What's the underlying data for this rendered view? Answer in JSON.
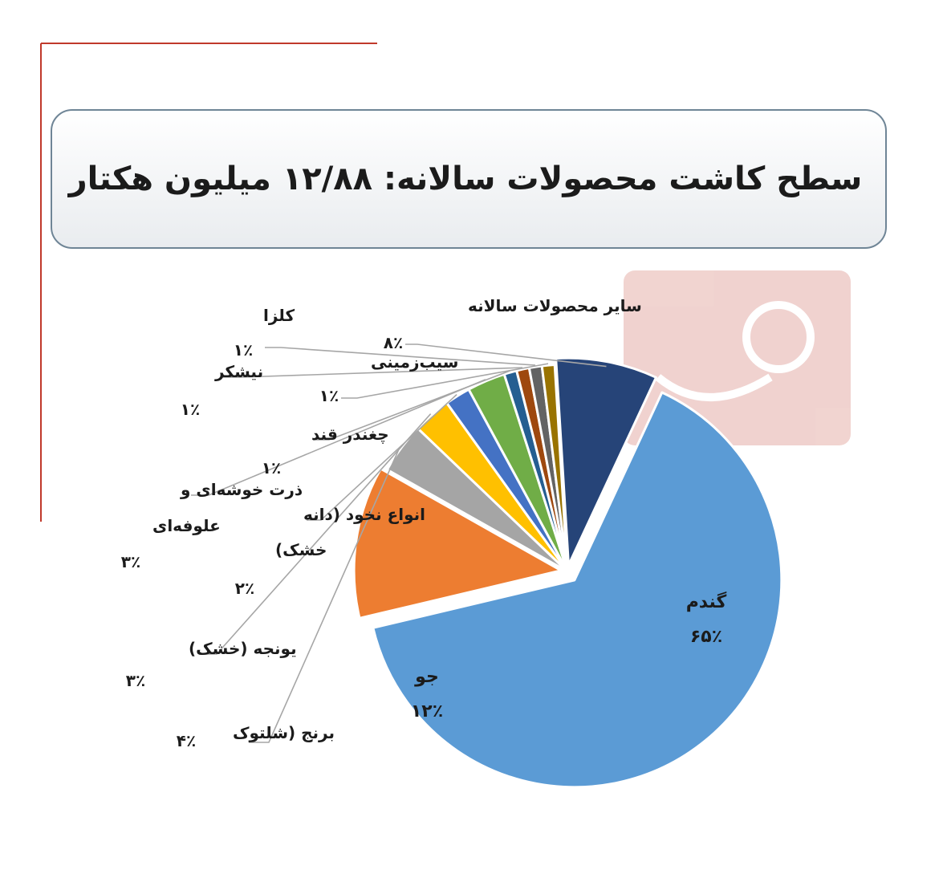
{
  "chart_data": {
    "type": "pie",
    "title": "سطح کاشت محصولات سالانه: ۱۲/۸۸ میلیون هکتار",
    "slices": [
      {
        "label": "گندم",
        "value": 65,
        "value_label": "۶۵٪",
        "color": "#5b9bd5"
      },
      {
        "label": "جو",
        "value": 12,
        "value_label": "۱۲٪",
        "color": "#ed7d31"
      },
      {
        "label": "برنج (شلتوک",
        "value": 4,
        "value_label": "۴٪",
        "color": "#a5a5a5"
      },
      {
        "label": "یونجه (خشک)",
        "value": 3,
        "value_label": "۳٪",
        "color": "#ffc000"
      },
      {
        "label": "انواع نخود (دانه خشک)",
        "value": 2,
        "value_label": "۲٪",
        "color": "#4472c4"
      },
      {
        "label": "ذرت خوشه‌ای و علوفه‌ای",
        "value": 3,
        "value_label": "۳٪",
        "color": "#70ad47"
      },
      {
        "label": "چغندر قند",
        "value": 1,
        "value_label": "۱٪",
        "color": "#255e91"
      },
      {
        "label": "نیشکر",
        "value": 1,
        "value_label": "۱٪",
        "color": "#9e480e"
      },
      {
        "label": "کلزا",
        "value": 1,
        "value_label": "۱٪",
        "color": "#636363"
      },
      {
        "label": "سیب‌زمینی",
        "value": 1,
        "value_label": "۱٪",
        "color": "#997300"
      },
      {
        "label": "سایر محصولات سالانه",
        "value": 8,
        "value_label": "۸٪",
        "color": "#264478"
      }
    ]
  }
}
